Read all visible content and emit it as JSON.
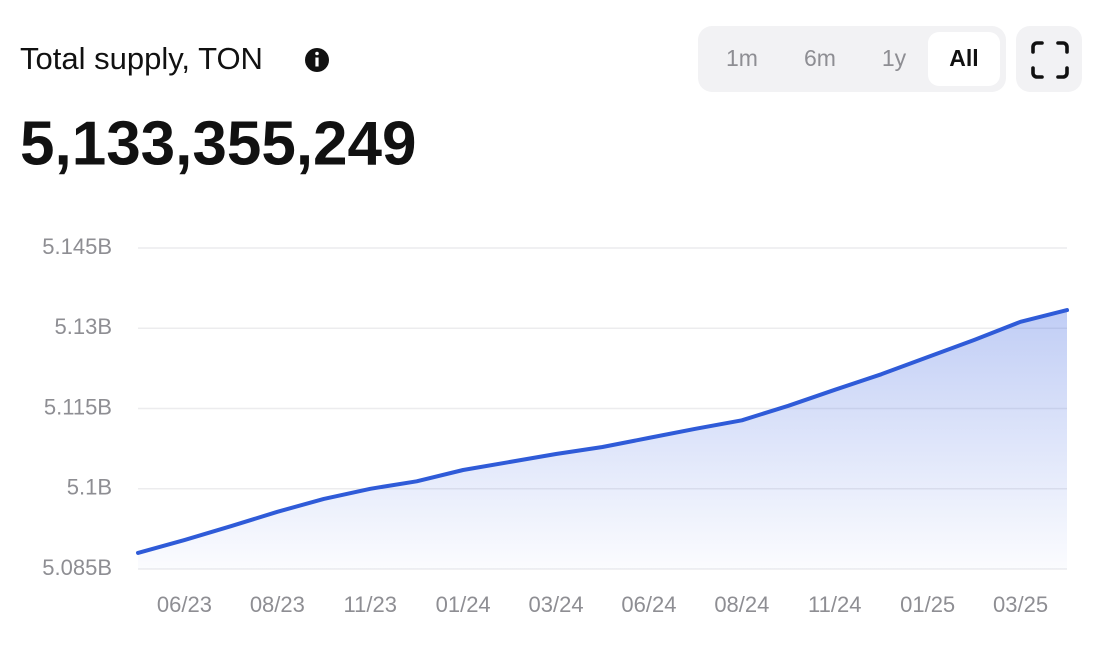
{
  "chart_data": {
    "type": "line",
    "title": "Total supply, TON",
    "subtitle": "5,133,355,249",
    "controls": [
      "1m",
      "6m",
      "1y",
      "All"
    ],
    "selected": 3,
    "categories": [
      null,
      "06/23",
      null,
      "08/23",
      null,
      "11/23",
      null,
      "01/24",
      null,
      "03/24",
      null,
      "06/24",
      null,
      "08/24",
      null,
      "11/24",
      null,
      "01/25",
      null,
      "03/25",
      null
    ],
    "values": [
      5.088,
      5.0904,
      5.093,
      5.0957,
      5.0981,
      5.1,
      5.1014,
      5.1035,
      5.105,
      5.1065,
      5.1078,
      5.1095,
      5.1112,
      5.1128,
      5.1155,
      5.1185,
      5.1214,
      5.1246,
      5.1278,
      5.1312,
      5.1334
    ],
    "color": "#2f5bd8",
    "ylim": [
      5.085,
      5.145
    ],
    "yticks": [
      {
        "value": 5.085,
        "label": "5.085B"
      },
      {
        "value": 5.1,
        "label": "5.1B"
      },
      {
        "value": 5.115,
        "label": "5.115B"
      },
      {
        "value": 5.13,
        "label": "5.13B"
      },
      {
        "value": 5.145,
        "label": "5.145B"
      }
    ],
    "grid": true
  }
}
